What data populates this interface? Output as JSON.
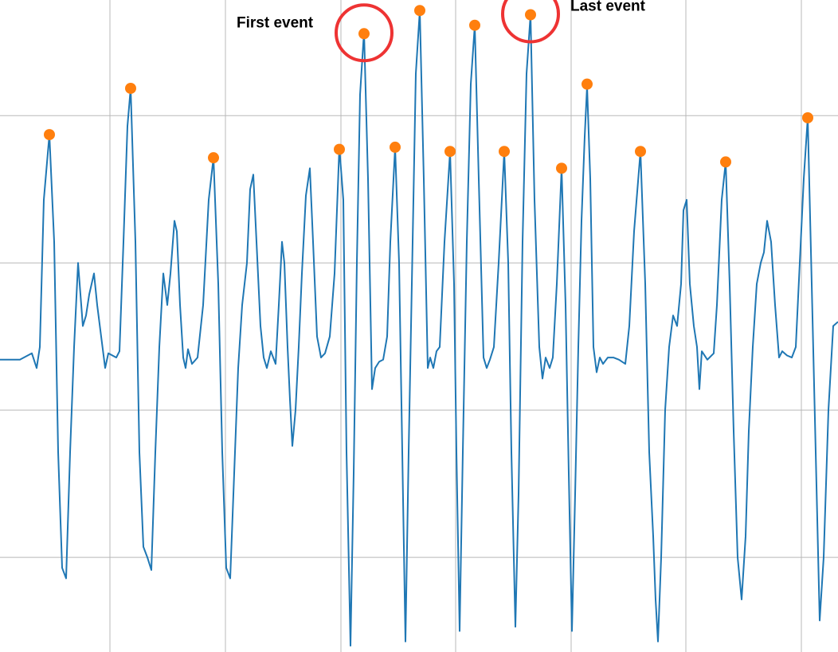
{
  "chart_data": {
    "type": "line",
    "title": "",
    "xlabel": "",
    "ylabel": "",
    "xlim": [
      0,
      1052
    ],
    "ylim": [
      -1.45,
      1.65
    ],
    "grid": true,
    "x_gridlines": [
      138,
      283,
      428,
      572,
      717,
      861,
      1006
    ],
    "y_gridlines": [
      -1.0,
      -0.3,
      0.4,
      1.1
    ],
    "series": [
      {
        "color": "#1f77b4",
        "points": [
          [
            0,
            -0.06
          ],
          [
            25,
            -0.06
          ],
          [
            40,
            -0.03
          ],
          [
            46,
            -0.1
          ],
          [
            50,
            0.0
          ],
          [
            55,
            0.7
          ],
          [
            62,
            1.01
          ],
          [
            68,
            0.5
          ],
          [
            73,
            -0.5
          ],
          [
            78,
            -1.05
          ],
          [
            83,
            -1.1
          ],
          [
            88,
            -0.5
          ],
          [
            93,
            0.0
          ],
          [
            98,
            0.4
          ],
          [
            104,
            0.1
          ],
          [
            108,
            0.15
          ],
          [
            112,
            0.25
          ],
          [
            118,
            0.35
          ],
          [
            122,
            0.2
          ],
          [
            127,
            0.05
          ],
          [
            132,
            -0.1
          ],
          [
            136,
            -0.03
          ],
          [
            146,
            -0.05
          ],
          [
            150,
            -0.02
          ],
          [
            155,
            0.5
          ],
          [
            160,
            1.05
          ],
          [
            164,
            1.23
          ],
          [
            170,
            0.5
          ],
          [
            175,
            -0.5
          ],
          [
            180,
            -0.95
          ],
          [
            185,
            -1.0
          ],
          [
            190,
            -1.06
          ],
          [
            195,
            -0.5
          ],
          [
            200,
            0.0
          ],
          [
            205,
            0.35
          ],
          [
            210,
            0.2
          ],
          [
            214,
            0.35
          ],
          [
            219,
            0.6
          ],
          [
            222,
            0.55
          ],
          [
            226,
            0.2
          ],
          [
            230,
            -0.05
          ],
          [
            233,
            -0.1
          ],
          [
            236,
            -0.01
          ],
          [
            241,
            -0.08
          ],
          [
            248,
            -0.05
          ],
          [
            255,
            0.2
          ],
          [
            262,
            0.7
          ],
          [
            268,
            0.9
          ],
          [
            274,
            0.3
          ],
          [
            279,
            -0.5
          ],
          [
            284,
            -1.05
          ],
          [
            289,
            -1.1
          ],
          [
            294,
            -0.6
          ],
          [
            299,
            -0.1
          ],
          [
            304,
            0.2
          ],
          [
            310,
            0.4
          ],
          [
            314,
            0.75
          ],
          [
            318,
            0.82
          ],
          [
            322,
            0.5
          ],
          [
            327,
            0.1
          ],
          [
            331,
            -0.05
          ],
          [
            335,
            -0.1
          ],
          [
            340,
            -0.02
          ],
          [
            346,
            -0.08
          ],
          [
            350,
            0.2
          ],
          [
            354,
            0.5
          ],
          [
            357,
            0.4
          ],
          [
            361,
            0.0
          ],
          [
            364,
            -0.25
          ],
          [
            367,
            -0.47
          ],
          [
            371,
            -0.3
          ],
          [
            375,
            0.0
          ],
          [
            379,
            0.35
          ],
          [
            384,
            0.72
          ],
          [
            389,
            0.85
          ],
          [
            393,
            0.5
          ],
          [
            398,
            0.05
          ],
          [
            403,
            -0.05
          ],
          [
            408,
            -0.03
          ],
          [
            414,
            0.05
          ],
          [
            420,
            0.35
          ],
          [
            426,
            0.95
          ],
          [
            431,
            0.7
          ],
          [
            435,
            -0.5
          ],
          [
            440,
            -1.42
          ],
          [
            444,
            -0.6
          ],
          [
            448,
            0.4
          ],
          [
            452,
            1.2
          ],
          [
            457,
            1.5
          ],
          [
            462,
            0.8
          ],
          [
            467,
            -0.2
          ],
          [
            471,
            -0.1
          ],
          [
            476,
            -0.07
          ],
          [
            481,
            -0.06
          ],
          [
            486,
            0.05
          ],
          [
            490,
            0.5
          ],
          [
            496,
            0.95
          ],
          [
            501,
            0.4
          ],
          [
            505,
            -0.5
          ],
          [
            509,
            -1.4
          ],
          [
            513,
            -0.5
          ],
          [
            518,
            0.5
          ],
          [
            522,
            1.3
          ],
          [
            527,
            1.6
          ],
          [
            532,
            0.8
          ],
          [
            537,
            -0.1
          ],
          [
            540,
            -0.05
          ],
          [
            544,
            -0.1
          ],
          [
            548,
            -0.02
          ],
          [
            552,
            0.0
          ],
          [
            558,
            0.5
          ],
          [
            565,
            0.93
          ],
          [
            570,
            0.3
          ],
          [
            573,
            -0.5
          ],
          [
            577,
            -1.35
          ],
          [
            581,
            -0.5
          ],
          [
            586,
            0.5
          ],
          [
            591,
            1.25
          ],
          [
            596,
            1.53
          ],
          [
            601,
            0.8
          ],
          [
            607,
            -0.05
          ],
          [
            611,
            -0.1
          ],
          [
            615,
            -0.06
          ],
          [
            620,
            0.0
          ],
          [
            626,
            0.4
          ],
          [
            633,
            0.93
          ],
          [
            638,
            0.4
          ],
          [
            642,
            -0.5
          ],
          [
            647,
            -1.33
          ],
          [
            651,
            -0.7
          ],
          [
            656,
            0.5
          ],
          [
            661,
            1.3
          ],
          [
            666,
            1.58
          ],
          [
            671,
            0.7
          ],
          [
            677,
            0.0
          ],
          [
            681,
            -0.15
          ],
          [
            685,
            -0.05
          ],
          [
            690,
            -0.1
          ],
          [
            694,
            -0.05
          ],
          [
            699,
            0.3
          ],
          [
            705,
            0.85
          ],
          [
            710,
            0.2
          ],
          [
            714,
            -0.6
          ],
          [
            718,
            -1.35
          ],
          [
            722,
            -0.7
          ],
          [
            726,
            0.0
          ],
          [
            730,
            0.6
          ],
          [
            734,
            1.0
          ],
          [
            737,
            1.24
          ],
          [
            741,
            0.8
          ],
          [
            745,
            0.0
          ],
          [
            749,
            -0.12
          ],
          [
            753,
            -0.05
          ],
          [
            757,
            -0.08
          ],
          [
            763,
            -0.05
          ],
          [
            770,
            -0.05
          ],
          [
            777,
            -0.06
          ],
          [
            785,
            -0.08
          ],
          [
            790,
            0.1
          ],
          [
            796,
            0.55
          ],
          [
            804,
            0.93
          ],
          [
            810,
            0.3
          ],
          [
            815,
            -0.5
          ],
          [
            820,
            -0.9
          ],
          [
            823,
            -1.2
          ],
          [
            826,
            -1.4
          ],
          [
            830,
            -1.0
          ],
          [
            835,
            -0.3
          ],
          [
            840,
            0.0
          ],
          [
            845,
            0.15
          ],
          [
            850,
            0.1
          ],
          [
            855,
            0.3
          ],
          [
            858,
            0.65
          ],
          [
            862,
            0.7
          ],
          [
            866,
            0.3
          ],
          [
            871,
            0.1
          ],
          [
            875,
            0.0
          ],
          [
            878,
            -0.2
          ],
          [
            881,
            -0.02
          ],
          [
            888,
            -0.06
          ],
          [
            896,
            -0.03
          ],
          [
            900,
            0.2
          ],
          [
            906,
            0.7
          ],
          [
            911,
            0.88
          ],
          [
            916,
            0.3
          ],
          [
            921,
            -0.4
          ],
          [
            926,
            -1.0
          ],
          [
            931,
            -1.2
          ],
          [
            936,
            -0.9
          ],
          [
            940,
            -0.4
          ],
          [
            945,
            0.0
          ],
          [
            950,
            0.3
          ],
          [
            955,
            0.4
          ],
          [
            959,
            0.45
          ],
          [
            963,
            0.6
          ],
          [
            968,
            0.5
          ],
          [
            973,
            0.2
          ],
          [
            978,
            -0.05
          ],
          [
            982,
            -0.02
          ],
          [
            988,
            -0.04
          ],
          [
            994,
            -0.05
          ],
          [
            999,
            0.0
          ],
          [
            1004,
            0.4
          ],
          [
            1009,
            0.8
          ],
          [
            1014,
            1.09
          ],
          [
            1019,
            0.3
          ],
          [
            1024,
            -0.5
          ],
          [
            1029,
            -1.3
          ],
          [
            1034,
            -1.0
          ],
          [
            1040,
            -0.3
          ],
          [
            1046,
            0.1
          ],
          [
            1052,
            0.12
          ]
        ]
      }
    ],
    "peaks": {
      "color": "#ff7f0e",
      "x": [
        62,
        164,
        268,
        426,
        457,
        496,
        527,
        565,
        596,
        633,
        666,
        705,
        737,
        804,
        911,
        1014
      ],
      "y": [
        1.01,
        1.23,
        0.9,
        0.94,
        1.49,
        0.95,
        1.6,
        0.93,
        1.53,
        0.93,
        1.58,
        0.85,
        1.25,
        0.93,
        0.88,
        1.09
      ]
    },
    "highlights": {
      "color": "#ee3333",
      "x": [
        457,
        666
      ],
      "y": [
        1.49,
        1.58
      ]
    },
    "annotations": [
      {
        "text": "First event",
        "x": 297,
        "y": 1.5,
        "anchor": "start"
      },
      {
        "text": "Last event",
        "x": 716,
        "y": 1.58,
        "anchor": "start"
      }
    ]
  }
}
